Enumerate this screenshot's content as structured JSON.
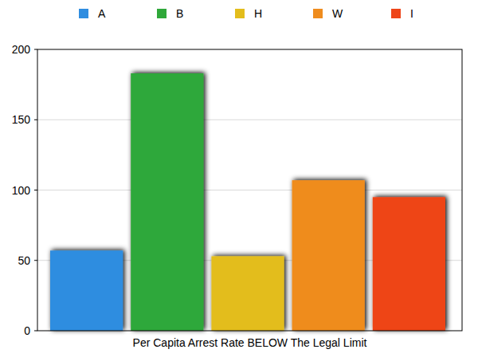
{
  "chart_data": {
    "type": "bar",
    "categories": [
      "Per Capita Arrest Rate BELOW The Legal Limit"
    ],
    "series": [
      {
        "name": "A",
        "color": "#2f8de0",
        "values": [
          57
        ]
      },
      {
        "name": "B",
        "color": "#2fa83a",
        "values": [
          183
        ]
      },
      {
        "name": "H",
        "color": "#e3bd1c",
        "values": [
          53
        ]
      },
      {
        "name": "W",
        "color": "#ef8c1e",
        "values": [
          107
        ]
      },
      {
        "name": "I",
        "color": "#ee4519",
        "values": [
          95
        ]
      }
    ],
    "ylim": [
      0,
      200
    ],
    "yticks": [
      0,
      50,
      100,
      150,
      200
    ],
    "grid": true,
    "legend": "top"
  }
}
